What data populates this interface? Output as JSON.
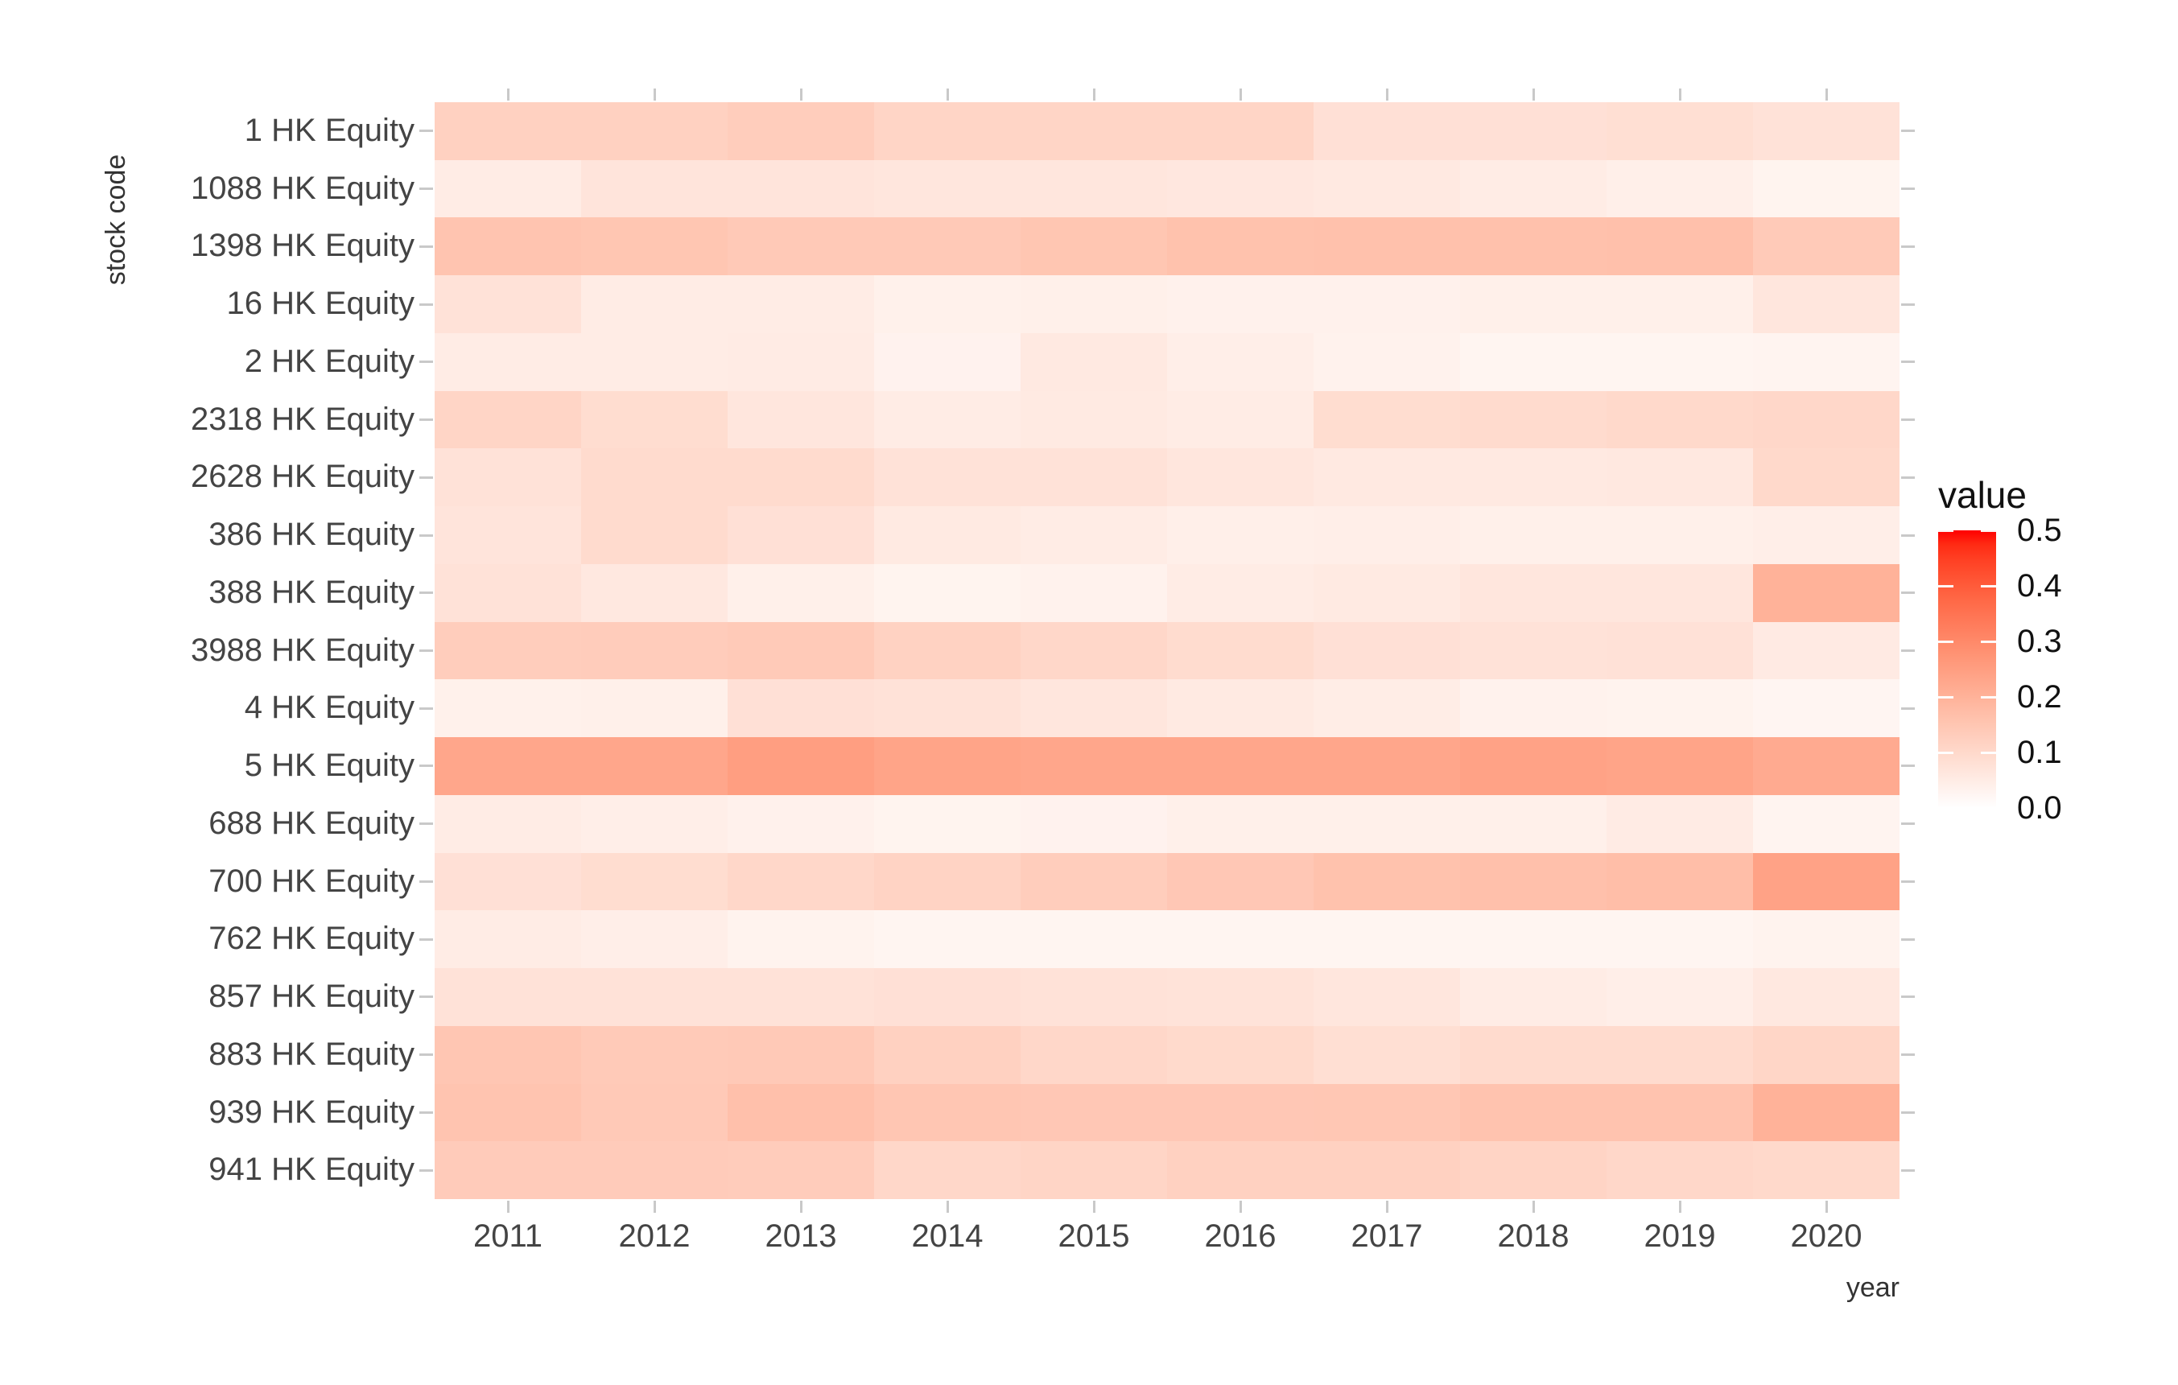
{
  "chart_data": {
    "type": "heatmap",
    "title": "",
    "xlabel": "year",
    "ylabel": "stock code",
    "columns": [
      "2011",
      "2012",
      "2013",
      "2014",
      "2015",
      "2016",
      "2017",
      "2018",
      "2019",
      "2020"
    ],
    "rows": [
      "1 HK Equity",
      "1088 HK Equity",
      "1398 HK Equity",
      "16 HK Equity",
      "2 HK Equity",
      "2318 HK Equity",
      "2628 HK Equity",
      "386 HK Equity",
      "388 HK Equity",
      "3988 HK Equity",
      "4 HK Equity",
      "5 HK Equity",
      "688 HK Equity",
      "700 HK Equity",
      "762 HK Equity",
      "857 HK Equity",
      "883 HK Equity",
      "939 HK Equity",
      "941 HK Equity"
    ],
    "values": [
      [
        0.12,
        0.12,
        0.13,
        0.11,
        0.11,
        0.11,
        0.08,
        0.08,
        0.085,
        0.075
      ],
      [
        0.05,
        0.07,
        0.07,
        0.065,
        0.065,
        0.062,
        0.058,
        0.05,
        0.043,
        0.03
      ],
      [
        0.155,
        0.15,
        0.14,
        0.14,
        0.15,
        0.16,
        0.162,
        0.162,
        0.165,
        0.138
      ],
      [
        0.075,
        0.05,
        0.05,
        0.038,
        0.04,
        0.036,
        0.036,
        0.04,
        0.04,
        0.065
      ],
      [
        0.05,
        0.05,
        0.052,
        0.033,
        0.058,
        0.044,
        0.035,
        0.026,
        0.026,
        0.028
      ],
      [
        0.11,
        0.09,
        0.065,
        0.05,
        0.055,
        0.05,
        0.09,
        0.095,
        0.1,
        0.105
      ],
      [
        0.075,
        0.095,
        0.095,
        0.075,
        0.075,
        0.065,
        0.058,
        0.058,
        0.06,
        0.1
      ],
      [
        0.07,
        0.095,
        0.08,
        0.055,
        0.05,
        0.042,
        0.045,
        0.04,
        0.04,
        0.045
      ],
      [
        0.075,
        0.06,
        0.04,
        0.03,
        0.035,
        0.05,
        0.055,
        0.065,
        0.065,
        0.2
      ],
      [
        0.13,
        0.132,
        0.138,
        0.118,
        0.105,
        0.092,
        0.08,
        0.075,
        0.078,
        0.054
      ],
      [
        0.038,
        0.04,
        0.08,
        0.075,
        0.065,
        0.055,
        0.048,
        0.035,
        0.032,
        0.025
      ],
      [
        0.23,
        0.23,
        0.25,
        0.235,
        0.23,
        0.23,
        0.23,
        0.24,
        0.235,
        0.22
      ],
      [
        0.05,
        0.045,
        0.036,
        0.03,
        0.033,
        0.04,
        0.04,
        0.04,
        0.052,
        0.028
      ],
      [
        0.08,
        0.09,
        0.105,
        0.115,
        0.13,
        0.145,
        0.16,
        0.165,
        0.17,
        0.24
      ],
      [
        0.05,
        0.044,
        0.032,
        0.027,
        0.027,
        0.027,
        0.027,
        0.027,
        0.027,
        0.032
      ],
      [
        0.075,
        0.075,
        0.075,
        0.08,
        0.075,
        0.073,
        0.065,
        0.05,
        0.045,
        0.06
      ],
      [
        0.148,
        0.138,
        0.14,
        0.12,
        0.105,
        0.098,
        0.085,
        0.095,
        0.095,
        0.108
      ],
      [
        0.155,
        0.14,
        0.165,
        0.148,
        0.145,
        0.145,
        0.147,
        0.157,
        0.157,
        0.2
      ],
      [
        0.135,
        0.135,
        0.133,
        0.105,
        0.11,
        0.12,
        0.12,
        0.112,
        0.105,
        0.1
      ]
    ],
    "color_scale": {
      "low": "#FFFFFF",
      "high": "#FF0000",
      "domain": [
        0.0,
        0.5
      ],
      "interpolation": "lab"
    },
    "legend": {
      "title": "value",
      "ticks": [
        0.5,
        0.4,
        0.3,
        0.2,
        0.1,
        0.0
      ],
      "position": "right"
    },
    "grid": false,
    "background": "#FFFFFF"
  }
}
